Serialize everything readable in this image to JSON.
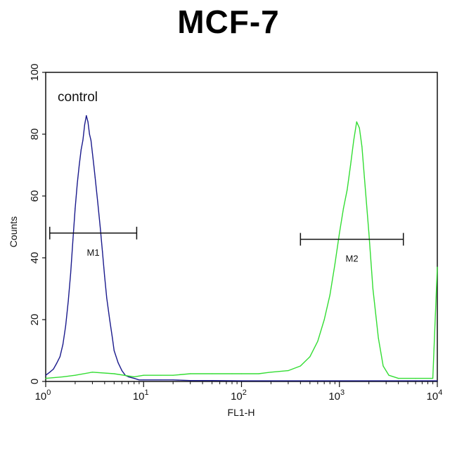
{
  "chart_data": {
    "type": "line",
    "title": "MCF-7",
    "xlabel": "FL1-H",
    "ylabel": "Counts",
    "x_scale": "log",
    "xlim": [
      1,
      10000
    ],
    "ylim": [
      0,
      100
    ],
    "x_ticks": [
      {
        "value": 1,
        "base": "10",
        "exp": "0"
      },
      {
        "value": 10,
        "base": "10",
        "exp": "1"
      },
      {
        "value": 100,
        "base": "10",
        "exp": "2"
      },
      {
        "value": 1000,
        "base": "10",
        "exp": "3"
      },
      {
        "value": 10000,
        "base": "10",
        "exp": "4"
      }
    ],
    "y_ticks": [
      "0",
      "20",
      "40",
      "60",
      "80",
      "100"
    ],
    "annotation": "control",
    "series": [
      {
        "color": "#1a1a8c",
        "x": [
          1.0,
          1.1,
          1.2,
          1.3,
          1.4,
          1.5,
          1.6,
          1.7,
          1.8,
          1.9,
          2.0,
          2.1,
          2.2,
          2.3,
          2.4,
          2.5,
          2.6,
          2.7,
          2.8,
          2.9,
          3.0,
          3.1,
          3.2,
          3.4,
          3.6,
          3.8,
          4.0,
          4.2,
          4.5,
          4.8,
          5.0,
          5.5,
          6.0,
          6.5,
          7.0,
          8.0,
          9.0,
          10.0,
          15,
          20,
          30,
          50,
          100,
          200,
          500,
          1000,
          3000,
          10000
        ],
        "y": [
          2,
          3,
          4,
          6,
          8,
          12,
          18,
          26,
          35,
          46,
          56,
          64,
          70,
          75,
          78,
          83,
          86,
          84,
          80,
          78,
          74,
          70,
          66,
          58,
          50,
          42,
          34,
          27,
          20,
          14,
          10,
          6,
          3.5,
          2,
          1.5,
          1,
          0.5,
          0.5,
          0.5,
          0.5,
          0.3,
          0.3,
          0.2,
          0.2,
          0.2,
          0.2,
          0.2,
          0.2
        ]
      },
      {
        "color": "#33dd33",
        "x": [
          1.0,
          1.5,
          2.0,
          3.0,
          5.0,
          8.0,
          10,
          15,
          20,
          30,
          50,
          80,
          100,
          150,
          200,
          300,
          400,
          500,
          600,
          700,
          800,
          900,
          1000,
          1100,
          1200,
          1300,
          1400,
          1500,
          1600,
          1700,
          1800,
          2000,
          2200,
          2500,
          2800,
          3200,
          4000,
          6000,
          9000,
          10000
        ],
        "y": [
          1,
          1.5,
          2,
          3,
          2.5,
          1.5,
          2,
          2,
          2,
          2.5,
          2.5,
          2.5,
          2.5,
          2.5,
          3,
          3.5,
          5,
          8,
          13,
          20,
          28,
          38,
          48,
          56,
          62,
          70,
          78,
          84,
          82,
          76,
          66,
          48,
          30,
          14,
          5,
          2,
          1,
          1,
          1,
          37
        ]
      }
    ],
    "markers": [
      {
        "label": "M1",
        "x_start": 1.1,
        "x_end": 8.5,
        "y": 48
      },
      {
        "label": "M2",
        "x_start": 400,
        "x_end": 4500,
        "y": 46
      }
    ]
  }
}
